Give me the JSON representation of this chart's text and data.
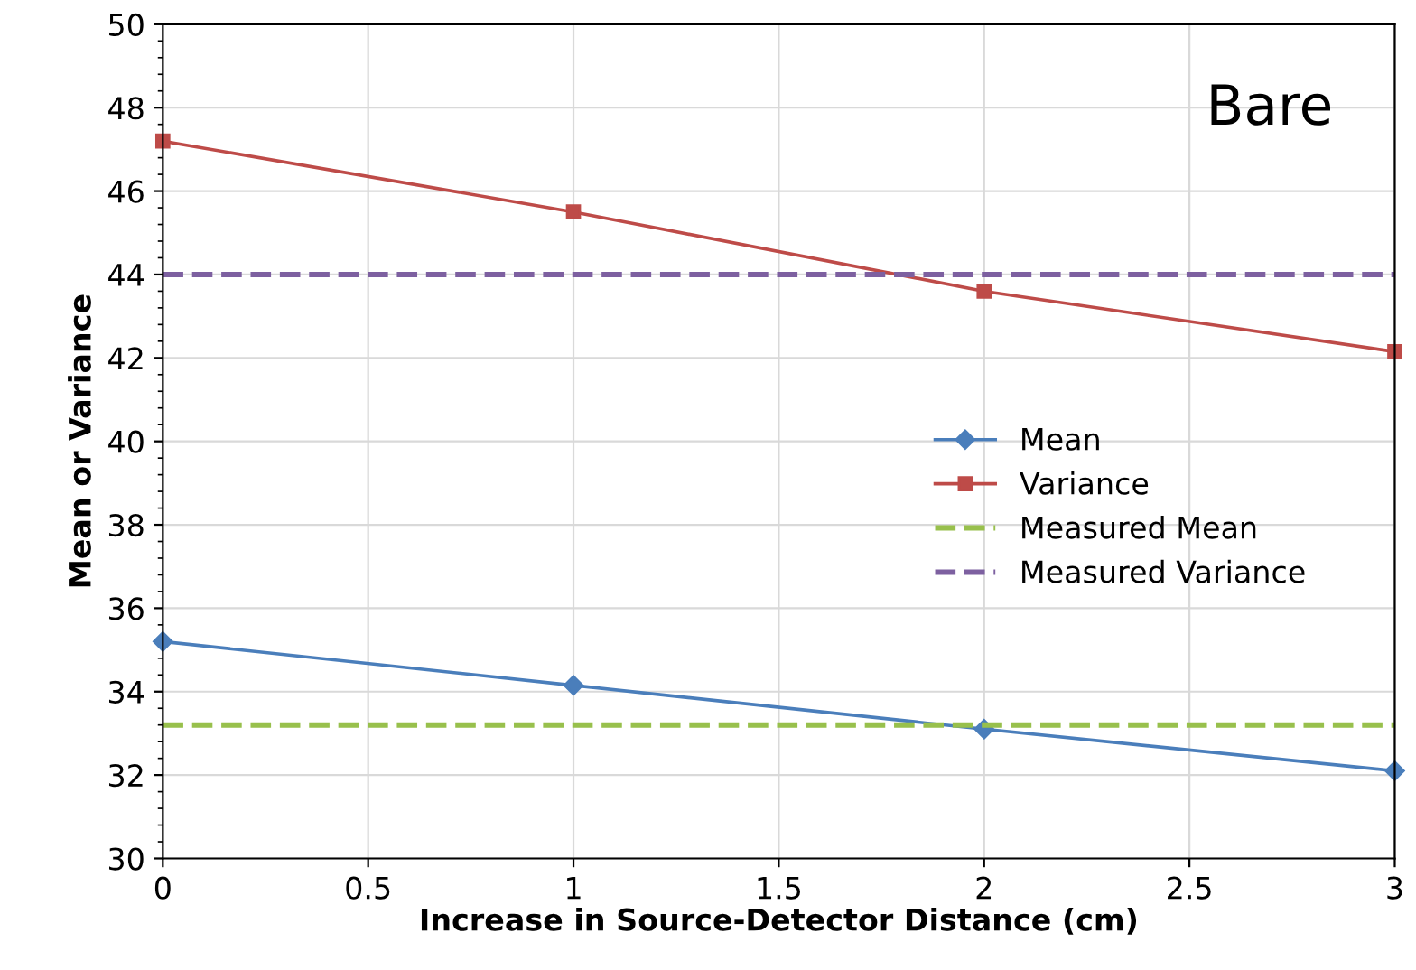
{
  "chart_data": {
    "type": "line",
    "xlabel": "Increase in Source-Detector Distance (cm)",
    "ylabel": "Mean or Variance",
    "x": [
      0,
      1,
      2,
      3
    ],
    "series": [
      {
        "name": "Mean",
        "color": "#4a7ebb",
        "values": [
          35.2,
          34.15,
          33.1,
          32.1
        ],
        "marker": "diamond"
      },
      {
        "name": "Variance",
        "color": "#be4b48",
        "values": [
          47.2,
          45.5,
          43.6,
          42.15
        ],
        "marker": "square"
      },
      {
        "name": "Measured Mean",
        "color": "#98c04c",
        "values": [
          33.2,
          33.2,
          33.2,
          33.2
        ],
        "marker": "none",
        "line_style": "dashed"
      },
      {
        "name": "Measured Variance",
        "color": "#7d60a0",
        "values": [
          44,
          44,
          44,
          44
        ],
        "marker": "none",
        "line_style": "dashed"
      }
    ],
    "annotations": [
      "Bare"
    ],
    "xlim": [
      0,
      3
    ],
    "xticks": [
      0,
      0.5,
      1,
      1.5,
      2,
      2.5,
      3
    ],
    "ylim": [
      30,
      50
    ],
    "yticks": [
      30,
      32,
      34,
      36,
      38,
      40,
      42,
      44,
      46,
      48,
      50
    ],
    "grid": true,
    "legend": "right"
  }
}
